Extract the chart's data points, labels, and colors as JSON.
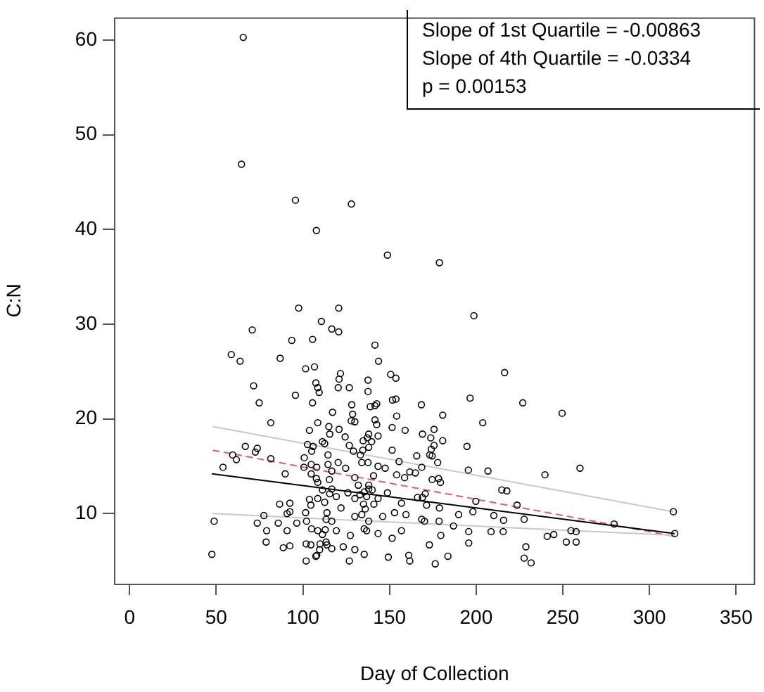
{
  "chart_data": {
    "type": "scatter",
    "xlabel": "Day of Collection",
    "ylabel": "C:N",
    "marker": "circle",
    "grid": false,
    "legend": false,
    "xlim": [
      -9,
      361
    ],
    "ylim": [
      2.6,
      62.4
    ],
    "xticks": [
      0,
      50,
      100,
      150,
      200,
      250,
      300,
      350
    ],
    "yticks": [
      10,
      20,
      30,
      40,
      50,
      60
    ],
    "annotations": [
      "Slope of 1st Quartile =  -0.00863",
      "Slope of 4th Quartile =  -0.0334",
      "p = 0.00153"
    ],
    "series": [
      {
        "color": "#000000",
        "x": [
          65.6,
          64.6,
          95.7,
          128,
          107.8,
          148.8,
          178.8,
          97.6,
          120.7,
          70.8,
          110.7,
          116.7,
          120.7,
          198.7,
          216.4,
          196.5,
          226.9,
          249.6,
          180.7,
          203.8,
          194.7,
          239.7,
          259.9,
          206.8,
          195.5,
          214.8,
          217.7,
          223.6,
          199.8,
          279.6,
          313.8,
          314.6,
          210.2,
          227.7,
          215.8,
          189.9,
          198.1,
          208.6,
          215.6,
          195.7,
          186.9,
          179.6,
          241,
          244.8,
          254.7,
          257.7,
          252,
          257.7,
          228.7,
          227.7,
          231.7,
          183.7,
          176.4,
          195.7,
          173,
          178.6,
          168.6,
          171.4,
          178.8,
          169,
          170.6,
          178.3,
          179.4,
          174.6,
          177.8,
          173.2,
          174.6,
          174.1,
          175.7,
          180.7,
          173.8,
          169,
          175.7,
          168.4,
          168.6,
          93.6,
          105.6,
          58.7,
          63.8,
          86.9,
          101.6,
          106.7,
          71.6,
          74.8,
          95.7,
          105.6,
          107.5,
          108.6,
          109.4,
          117.1,
          81.5,
          108.6,
          103.8,
          115.5,
          66.8,
          73.7,
          72.6,
          59.5,
          61.6,
          53.9,
          81.5,
          89.8,
          102.7,
          105.9,
          105.1,
          112.6,
          114.5,
          100.8,
          100.6,
          104.8,
          108,
          104.8,
          107.8,
          108.6,
          86.6,
          92.5,
          90.9,
          92.5,
          77.5,
          48.8,
          73.7,
          85.8,
          79.1,
          90.9,
          96.5,
          78.8,
          88.7,
          92.5,
          47.5,
          101.9,
          107.5,
          101.9,
          104.6,
          109.9,
          113.4,
          109.7,
          116.7,
          101.6,
          102.1,
          105,
          108.6,
          112.9,
          103.8,
          104.6,
          108.6,
          112.6,
          116.7,
          115.5,
          113.4,
          116.7,
          114.5,
          116.7,
          141.6,
          143.7,
          121.7,
          120.9,
          120.4,
          137.6,
          137.6,
          150.7,
          153.7,
          126.8,
          151.7,
          153.7,
          128.2,
          138.9,
          142.6,
          141.6,
          128.7,
          127.9,
          141.6,
          142.6,
          154.1,
          115,
          120.9,
          130,
          138,
          139.7,
          143.4,
          151.5,
          159,
          151.5,
          155.5,
          165.7,
          161.7,
          158.7,
          111.3,
          124.4,
          126.8,
          129.2,
          133.2,
          134.8,
          137.2,
          134.6,
          138,
          120.4,
          124.7,
          134,
          137.6,
          143.4,
          147.5,
          115.3,
          130,
          140.8,
          154.1,
          164.9,
          135.4,
          138,
          136.8,
          111.3,
          119.3,
          126,
          130,
          143.4,
          148.8,
          156.9,
          166.2,
          113.9,
          122,
          130,
          134,
          138,
          146.1,
          152.9,
          159.5,
          170.2,
          111.3,
          119.3,
          127.4,
          135.4,
          136.8,
          143.4,
          151.5,
          156.9,
          113.9,
          123.3,
          130,
          135.4,
          108,
          126.8,
          149.3,
          161.1,
          161.7,
          135,
          138,
          140,
          132,
          141,
          136,
          133
        ],
        "values": [
          60.3,
          46.9,
          43.1,
          42.7,
          39.9,
          37.3,
          36.5,
          31.7,
          31.7,
          29.4,
          30.3,
          29.5,
          29.2,
          30.9,
          24.9,
          22.2,
          21.7,
          20.6,
          20.4,
          19.6,
          17.1,
          14.1,
          14.8,
          14.5,
          14.6,
          12.5,
          12.4,
          10.9,
          11.3,
          8.9,
          10.2,
          7.9,
          9.8,
          9.4,
          9.3,
          9.9,
          10.2,
          8.1,
          8.1,
          8.1,
          8.7,
          7.7,
          7.6,
          7.8,
          8.2,
          8.1,
          7,
          7,
          6.5,
          5.3,
          4.8,
          5.5,
          4.7,
          6.9,
          6.7,
          9.2,
          9.4,
          10.9,
          10.6,
          11.7,
          12.1,
          13.7,
          13.3,
          13.6,
          15.4,
          16.2,
          16.1,
          16.8,
          17.2,
          17.7,
          18,
          18.4,
          18.9,
          21.5,
          14.9,
          28.3,
          28.4,
          26.8,
          26.1,
          26.4,
          25.3,
          25.5,
          23.5,
          21.7,
          22.5,
          21.7,
          23.8,
          23.3,
          22.8,
          20.7,
          19.6,
          19.6,
          18.8,
          18.4,
          17.1,
          16.9,
          16.5,
          16.2,
          15.7,
          14.9,
          15.8,
          14.2,
          17.3,
          17.1,
          16.6,
          17.4,
          16.2,
          15.9,
          14.9,
          15.2,
          14.9,
          14.2,
          13.7,
          13.3,
          11,
          11.1,
          10,
          10.2,
          9.8,
          9.2,
          9,
          9,
          8.2,
          8.2,
          9,
          7,
          6.4,
          6.6,
          5.7,
          5,
          5.5,
          6.8,
          6.7,
          6.8,
          7,
          6.2,
          6.3,
          10.1,
          9.2,
          8.4,
          8.2,
          8.3,
          11.5,
          10.9,
          11.6,
          11.2,
          12.6,
          12.1,
          9.4,
          9.2,
          15.2,
          14.5,
          27.8,
          26.1,
          24.8,
          24.2,
          23.3,
          24.1,
          22.9,
          24.7,
          24.3,
          23.3,
          22,
          22.1,
          21.5,
          21.3,
          21.6,
          21.4,
          20.5,
          19.8,
          19.9,
          19.4,
          20.3,
          19.2,
          18.9,
          19.7,
          18.4,
          17.6,
          18.2,
          19.1,
          18.8,
          16.7,
          15.5,
          16.1,
          14.4,
          13.8,
          17.6,
          18.1,
          17.2,
          16.6,
          16.2,
          17.7,
          18,
          16.7,
          17,
          15.4,
          14.8,
          15.4,
          15.4,
          15,
          14.8,
          13.6,
          13.8,
          14,
          14.1,
          14.3,
          12.3,
          12.6,
          11.8,
          12.5,
          11.8,
          12.2,
          11.6,
          11.6,
          12.2,
          11.1,
          11.7,
          10.1,
          10.6,
          9.7,
          9.9,
          9.2,
          9.7,
          10.1,
          9.9,
          9.2,
          7.8,
          8.2,
          7.7,
          8.4,
          8.2,
          7.9,
          7.4,
          8.2,
          6.7,
          6.5,
          6.2,
          5.7,
          5.6,
          5,
          5.4,
          5.6,
          5,
          11,
          13,
          12.5,
          13,
          11,
          10.5,
          12
        ]
      },
      {
        "type": "line",
        "color": "#c8c8c8",
        "marker": "none",
        "line_style": "solid",
        "x": [
          48,
          313.8
        ],
        "values": [
          19.2,
          10.2
        ]
      },
      {
        "type": "line",
        "color": "#c8c8c8",
        "marker": "none",
        "line_style": "solid",
        "x": [
          48,
          314.6
        ],
        "values": [
          10,
          7.7
        ]
      },
      {
        "type": "line",
        "color": "#000000",
        "marker": "none",
        "line_style": "solid",
        "x": [
          47.5,
          314.6
        ],
        "values": [
          14.2,
          7.9
        ]
      },
      {
        "type": "line",
        "color": "#e06060",
        "marker": "none",
        "line_style": "dashed",
        "x": [
          48,
          314.6
        ],
        "values": [
          16.7,
          7.6
        ]
      }
    ]
  }
}
